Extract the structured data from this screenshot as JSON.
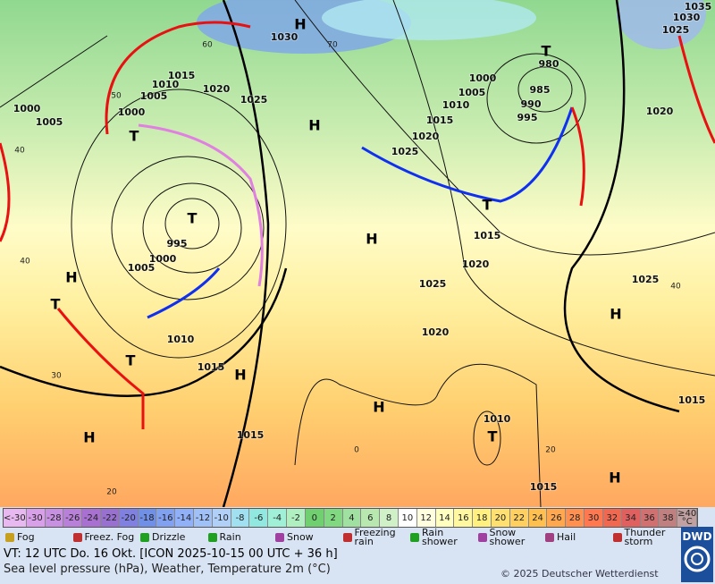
{
  "map": {
    "pressure_labels": [
      "1030",
      "1000",
      "1005",
      "1010",
      "1015",
      "1005",
      "1000",
      "1020",
      "1025",
      "995",
      "1000",
      "1005",
      "1010",
      "1015",
      "1015",
      "1025",
      "1020",
      "1015",
      "1010",
      "1005",
      "1000",
      "985",
      "990",
      "995",
      "980",
      "1015",
      "1020",
      "1025",
      "1020",
      "1025",
      "1020",
      "1030",
      "1035",
      "1025",
      "1010",
      "1015",
      "1015"
    ],
    "contour_labels": [
      "60",
      "50",
      "40",
      "40",
      "30",
      "20",
      "70",
      "40",
      "0",
      "20"
    ],
    "centers": [
      "H",
      "H",
      "H",
      "H",
      "H",
      "H",
      "H",
      "H",
      "H",
      "T",
      "T",
      "T",
      "T",
      "T",
      "T",
      "T"
    ]
  },
  "temperature_scale": {
    "under": "<-30",
    "over": "≥40",
    "unit": "°C",
    "values": [
      -30,
      -28,
      -26,
      -24,
      -22,
      -20,
      -18,
      -16,
      -14,
      -12,
      -10,
      -8,
      -6,
      -4,
      -2,
      0,
      2,
      4,
      6,
      8,
      10,
      12,
      14,
      16,
      18,
      20,
      22,
      24,
      26,
      28,
      30,
      32,
      34,
      36,
      38
    ],
    "under_color": "#e8b8f0",
    "over_color": "#c0a0a0",
    "colors": [
      "#d8a0e8",
      "#c890e0",
      "#b880d8",
      "#a870d0",
      "#9870d0",
      "#8080e0",
      "#7090e8",
      "#80a0f0",
      "#90b0f8",
      "#a0c0f8",
      "#b0d0f8",
      "#a0e0f0",
      "#90e8e0",
      "#a0f0d8",
      "#b0f0c0",
      "#70d070",
      "#80d880",
      "#a0e0a0",
      "#b8e8b0",
      "#d0f0c8",
      "#ffffff",
      "#ffffe0",
      "#ffffc0",
      "#fff8a0",
      "#fff080",
      "#ffe070",
      "#ffd060",
      "#ffc050",
      "#ffa850",
      "#ff9050",
      "#ff7850",
      "#f06850",
      "#e06060",
      "#d07070",
      "#c08080"
    ]
  },
  "weather_legend": [
    "Fog",
    "Freez. Fog",
    "Drizzle",
    "Rain",
    "Snow",
    "Freezing rain",
    "Rain shower",
    "Snow shower",
    "Hail",
    "Thunder storm"
  ],
  "footer": {
    "valid_time": "VT: 12 UTC Do.  16 Okt. [ICON 2025-10-15  00 UTC + 36 h]",
    "description": "Sea level pressure (hPa), Weather, Temperature 2m (°C)",
    "copyright": "© 2025 Deutscher Wetterdienst",
    "logo": "DWD"
  }
}
